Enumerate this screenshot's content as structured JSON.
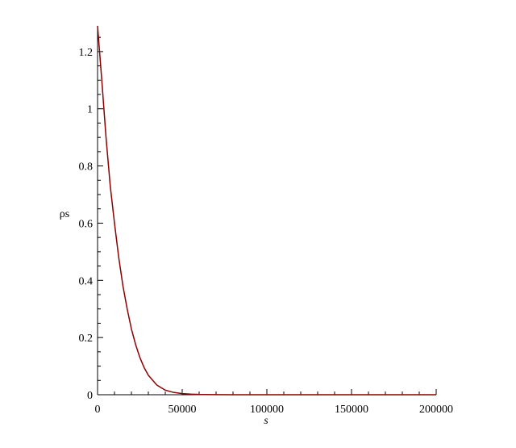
{
  "chart_data": {
    "type": "line",
    "title": "",
    "xlabel": "s",
    "ylabel": "ρs",
    "xlim": [
      0,
      200000
    ],
    "ylim": [
      0,
      1.29
    ],
    "x_ticks": [
      0,
      50000,
      100000,
      150000,
      200000
    ],
    "x_tick_labels": [
      "0",
      "50000",
      "100000",
      "150000",
      "200000"
    ],
    "y_ticks": [
      0,
      0.2,
      0.4,
      0.6,
      0.8,
      1,
      1.2
    ],
    "y_tick_labels": [
      "0",
      "0.2",
      "0.4",
      "0.6",
      "0.8",
      "1",
      "1.2"
    ],
    "grid": false,
    "legend": "none",
    "series": [
      {
        "color": "#8b0000",
        "x": [
          0,
          2500,
          5000,
          7500,
          10000,
          12500,
          15000,
          17500,
          20000,
          22500,
          25000,
          27500,
          30000,
          35000,
          40000,
          45000,
          50000,
          55000,
          60000,
          70000,
          80000,
          100000,
          125000,
          150000,
          175000,
          200000
        ],
        "y": [
          1.29,
          1.1,
          0.9,
          0.73,
          0.6,
          0.48,
          0.38,
          0.3,
          0.23,
          0.175,
          0.13,
          0.095,
          0.068,
          0.034,
          0.016,
          0.008,
          0.004,
          0.002,
          0.001,
          0.0003,
          0.0001,
          0,
          0,
          0,
          0,
          0
        ]
      }
    ]
  }
}
